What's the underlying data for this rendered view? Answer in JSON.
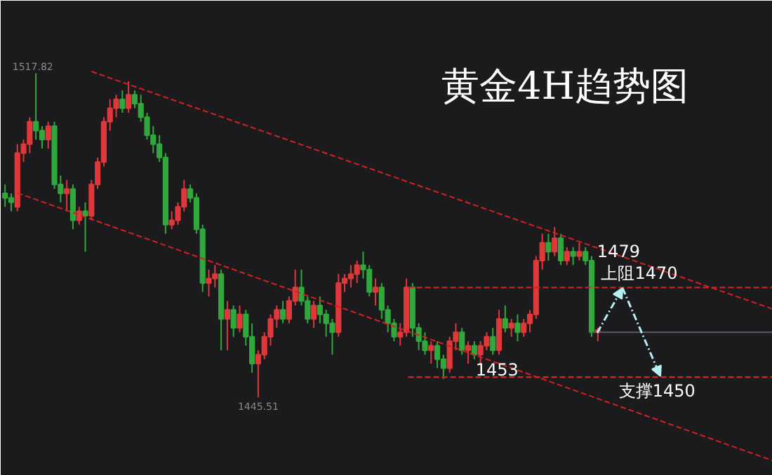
{
  "chart_data": {
    "type": "candlestick",
    "title": "黄金4H趋势图",
    "categories": [
      null,
      null,
      null,
      null,
      null,
      null,
      null,
      null,
      null,
      null,
      null,
      null,
      null,
      null,
      null,
      null,
      null,
      null,
      null,
      null,
      null,
      null,
      null,
      null,
      null,
      null,
      null,
      null,
      null,
      null,
      null,
      null,
      null,
      null,
      null,
      null,
      null,
      null,
      null,
      null,
      null,
      null,
      null,
      null,
      null,
      null,
      null,
      null,
      null,
      null,
      null,
      null,
      null,
      null,
      null,
      null,
      null,
      null,
      null,
      null,
      null,
      null,
      null,
      null,
      null,
      null,
      null,
      null,
      null,
      null,
      null,
      null,
      null,
      null,
      null,
      null,
      null,
      null,
      null,
      null,
      null,
      null,
      null,
      null,
      null,
      null,
      null,
      null,
      null,
      null,
      null,
      null,
      null,
      null,
      null,
      null,
      null
    ],
    "ohlc": [
      [
        1491,
        1493,
        1488,
        1490
      ],
      [
        1490,
        1491,
        1487,
        1489
      ],
      [
        1488,
        1502,
        1487,
        1500
      ],
      [
        1500,
        1503,
        1498,
        1502
      ],
      [
        1502,
        1508,
        1500,
        1507
      ],
      [
        1507,
        1517.82,
        1503,
        1505
      ],
      [
        1505,
        1506,
        1501,
        1503
      ],
      [
        1503,
        1507,
        1501,
        1506
      ],
      [
        1506,
        1507,
        1492,
        1493
      ],
      [
        1493,
        1495,
        1489,
        1491
      ],
      [
        1491,
        1494,
        1487,
        1492
      ],
      [
        1492,
        1493,
        1483,
        1485
      ],
      [
        1485,
        1488,
        1484,
        1487
      ],
      [
        1487,
        1489,
        1478,
        1486
      ],
      [
        1486,
        1494,
        1485,
        1493
      ],
      [
        1493,
        1499,
        1492,
        1498
      ],
      [
        1498,
        1508,
        1497,
        1507
      ],
      [
        1507,
        1512,
        1505,
        1510
      ],
      [
        1510,
        1513,
        1508,
        1512
      ],
      [
        1512,
        1514,
        1509,
        1510
      ],
      [
        1510,
        1516,
        1509,
        1513
      ],
      [
        1513,
        1514,
        1510,
        1511
      ],
      [
        1511,
        1513,
        1507,
        1508
      ],
      [
        1508,
        1509,
        1503,
        1504
      ],
      [
        1504,
        1506,
        1500,
        1502
      ],
      [
        1502,
        1504,
        1498,
        1499
      ],
      [
        1499,
        1500,
        1482,
        1484
      ],
      [
        1484,
        1487,
        1483,
        1485
      ],
      [
        1485,
        1489,
        1484,
        1488
      ],
      [
        1488,
        1494,
        1487,
        1492
      ],
      [
        1492,
        1493,
        1489,
        1490
      ],
      [
        1490,
        1491,
        1482,
        1483
      ],
      [
        1483,
        1484,
        1469,
        1471
      ],
      [
        1471,
        1474,
        1468,
        1472
      ],
      [
        1472,
        1475,
        1470,
        1473
      ],
      [
        1473,
        1474,
        1456,
        1463
      ],
      [
        1463,
        1467,
        1456,
        1465
      ],
      [
        1465,
        1466,
        1459,
        1461
      ],
      [
        1461,
        1466,
        1460,
        1464
      ],
      [
        1464,
        1465,
        1457,
        1459
      ],
      [
        1459,
        1462,
        1451,
        1453
      ],
      [
        1453,
        1456,
        1445.51,
        1455
      ],
      [
        1455,
        1460,
        1454,
        1459
      ],
      [
        1459,
        1464,
        1457,
        1463
      ],
      [
        1463,
        1466,
        1461,
        1465
      ],
      [
        1465,
        1467,
        1462,
        1463
      ],
      [
        1463,
        1468,
        1462,
        1467
      ],
      [
        1467,
        1474,
        1466,
        1470
      ],
      [
        1470,
        1474,
        1466,
        1467
      ],
      [
        1467,
        1468,
        1462,
        1463
      ],
      [
        1463,
        1467,
        1461,
        1466
      ],
      [
        1466,
        1468,
        1462,
        1464
      ],
      [
        1464,
        1465,
        1459,
        1462
      ],
      [
        1462,
        1463,
        1455,
        1460
      ],
      [
        1460,
        1473,
        1459,
        1471
      ],
      [
        1471,
        1473,
        1469,
        1472
      ],
      [
        1472,
        1475,
        1470,
        1473
      ],
      [
        1473,
        1476,
        1471,
        1475
      ],
      [
        1475,
        1478,
        1472,
        1474
      ],
      [
        1474,
        1475,
        1468,
        1469
      ],
      [
        1469,
        1472,
        1466,
        1470
      ],
      [
        1470,
        1471,
        1463,
        1465
      ],
      [
        1465,
        1466,
        1460,
        1462
      ],
      [
        1462,
        1463,
        1458,
        1459
      ],
      [
        1459,
        1462,
        1457,
        1460
      ],
      [
        1460,
        1472,
        1459,
        1470
      ],
      [
        1470,
        1471,
        1459,
        1461
      ],
      [
        1461,
        1462,
        1456,
        1458
      ],
      [
        1458,
        1460,
        1455,
        1456
      ],
      [
        1456,
        1458,
        1453,
        1457
      ],
      [
        1457,
        1458,
        1452,
        1454
      ],
      [
        1454,
        1455,
        1449.6,
        1452
      ],
      [
        1452,
        1459,
        1451,
        1458
      ],
      [
        1458,
        1462,
        1456,
        1460
      ],
      [
        1460,
        1461,
        1455,
        1456
      ],
      [
        1456,
        1458,
        1453,
        1457
      ],
      [
        1457,
        1458,
        1454,
        1455
      ],
      [
        1455,
        1458,
        1453,
        1457
      ],
      [
        1457,
        1460,
        1456,
        1459
      ],
      [
        1459,
        1461,
        1455,
        1456
      ],
      [
        1456,
        1465,
        1455,
        1463
      ],
      [
        1463,
        1466,
        1460,
        1461
      ],
      [
        1461,
        1463,
        1459,
        1462
      ],
      [
        1462,
        1464,
        1458,
        1460
      ],
      [
        1460,
        1463,
        1459,
        1462
      ],
      [
        1462,
        1465,
        1460,
        1464
      ],
      [
        1464,
        1477,
        1463,
        1476
      ],
      [
        1476,
        1482,
        1474,
        1480
      ],
      [
        1480,
        1482,
        1476,
        1478
      ],
      [
        1478,
        1483.5,
        1477,
        1481
      ],
      [
        1481,
        1482,
        1475,
        1476
      ],
      [
        1476,
        1479,
        1475,
        1478
      ],
      [
        1478,
        1479,
        1475,
        1477
      ],
      [
        1477,
        1480,
        1476,
        1478
      ],
      [
        1478,
        1479,
        1475,
        1476
      ],
      [
        1476,
        1477,
        1459,
        1460
      ],
      [
        1460,
        1461,
        1458,
        1460.5
      ]
    ],
    "ylim": [
      1428,
      1534
    ],
    "tick_labels": false,
    "grid": false,
    "series": [
      {
        "type": "line",
        "color": "#d42020",
        "line_style": "dashed",
        "values": [
          null,
          null,
          null,
          null,
          null,
          null,
          null,
          null,
          null,
          null,
          null,
          null,
          null,
          null,
          1518.2,
          null,
          null,
          null,
          null,
          null,
          null,
          null,
          null,
          null,
          null,
          null,
          null,
          null,
          null,
          null,
          null,
          null,
          null,
          null,
          null,
          null,
          null,
          null,
          null,
          null,
          null,
          null,
          null,
          null,
          null,
          null,
          null,
          null,
          null,
          null,
          null,
          null,
          null,
          null,
          null,
          null,
          null,
          null,
          null,
          null,
          null,
          null,
          null,
          null,
          null,
          null,
          null,
          null,
          null,
          null,
          null,
          null,
          null,
          null,
          null,
          null,
          null,
          null,
          null,
          null,
          null,
          null,
          null,
          null,
          null,
          null,
          null,
          null,
          null,
          null,
          null,
          null,
          null,
          null,
          null,
          null,
          1478.8
        ]
      },
      {
        "type": "line",
        "color": "#d42020",
        "line_style": "dashed",
        "values": [
          null,
          null,
          1491.1,
          null,
          null,
          null,
          null,
          null,
          null,
          null,
          null,
          null,
          null,
          null,
          null,
          null,
          null,
          null,
          null,
          null,
          null,
          null,
          null,
          null,
          null,
          null,
          null,
          null,
          null,
          null,
          null,
          null,
          null,
          null,
          null,
          null,
          null,
          null,
          null,
          null,
          null,
          null,
          null,
          null,
          null,
          null,
          null,
          null,
          null,
          null,
          null,
          null,
          null,
          null,
          null,
          null,
          null,
          null,
          null,
          null,
          null,
          null,
          null,
          null,
          null,
          null,
          null,
          null,
          null,
          null,
          null,
          null,
          null,
          null,
          null,
          null,
          null,
          null,
          null,
          null,
          null,
          null,
          null,
          null,
          null,
          null,
          null,
          null,
          null,
          null,
          null,
          null,
          null,
          null,
          null,
          null,
          1445.2
        ]
      },
      {
        "type": "line",
        "color": "#5c5c62",
        "line_style": "solid",
        "values": [
          null,
          null,
          null,
          null,
          null,
          null,
          null,
          null,
          null,
          null,
          null,
          null,
          null,
          null,
          null,
          null,
          null,
          null,
          null,
          null,
          null,
          null,
          null,
          null,
          null,
          null,
          null,
          null,
          null,
          null,
          null,
          null,
          null,
          null,
          null,
          null,
          null,
          null,
          null,
          null,
          null,
          null,
          null,
          null,
          null,
          null,
          null,
          null,
          null,
          null,
          null,
          null,
          null,
          null,
          null,
          null,
          null,
          null,
          null,
          null,
          null,
          null,
          null,
          null,
          null,
          null,
          null,
          null,
          null,
          null,
          null,
          null,
          null,
          null,
          null,
          null,
          null,
          null,
          null,
          null,
          null,
          null,
          null,
          null,
          null,
          null,
          null,
          null,
          null,
          null,
          null,
          null,
          null,
          null,
          null,
          1460,
          1460
        ]
      }
    ],
    "ref_lines": [
      {
        "axis": "y",
        "value": 1470,
        "label": "上阻1470",
        "color": "#d42020",
        "line_style": "dashed"
      },
      {
        "axis": "y",
        "value": 1450,
        "label": "支撑1450",
        "color": "#d42020",
        "line_style": "dashed"
      }
    ],
    "annotations": [
      "1517.82",
      "1445.51",
      "1479",
      "1453"
    ]
  }
}
